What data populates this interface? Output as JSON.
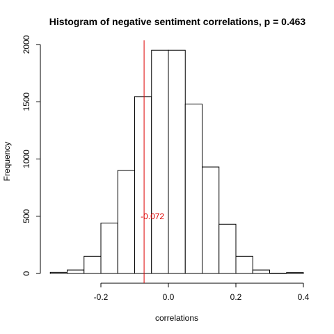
{
  "chart_data": {
    "type": "bar",
    "title": "Histogram of negative sentiment correlations, p = 0.463",
    "xlabel": "correlations",
    "ylabel": "Frequency",
    "xlim": [
      -0.35,
      0.4
    ],
    "ylim": [
      0,
      2000
    ],
    "bin_width": 0.05,
    "bins": [
      {
        "start": -0.35,
        "end": -0.3,
        "count": 10
      },
      {
        "start": -0.3,
        "end": -0.25,
        "count": 30
      },
      {
        "start": -0.25,
        "end": -0.2,
        "count": 150
      },
      {
        "start": -0.2,
        "end": -0.15,
        "count": 440
      },
      {
        "start": -0.15,
        "end": -0.1,
        "count": 900
      },
      {
        "start": -0.1,
        "end": -0.05,
        "count": 1545
      },
      {
        "start": -0.05,
        "end": 0.0,
        "count": 1950
      },
      {
        "start": 0.0,
        "end": 0.05,
        "count": 1950
      },
      {
        "start": 0.05,
        "end": 0.1,
        "count": 1480
      },
      {
        "start": 0.1,
        "end": 0.15,
        "count": 930
      },
      {
        "start": 0.15,
        "end": 0.2,
        "count": 430
      },
      {
        "start": 0.2,
        "end": 0.25,
        "count": 150
      },
      {
        "start": 0.25,
        "end": 0.3,
        "count": 30
      },
      {
        "start": 0.3,
        "end": 0.35,
        "count": 3
      },
      {
        "start": 0.35,
        "end": 0.4,
        "count": 8
      }
    ],
    "x_ticks": [
      -0.2,
      0.0,
      0.2,
      0.4
    ],
    "x_tick_labels": [
      "-0.2",
      "0.0",
      "0.2",
      "0.4"
    ],
    "y_ticks": [
      0,
      500,
      1000,
      1500,
      2000
    ],
    "y_tick_labels": [
      "0",
      "500",
      "1000",
      "1500",
      "2000"
    ],
    "reference_line": {
      "x": -0.072,
      "label": "-0.072",
      "color": "#dd0000",
      "label_y": 500
    },
    "grid": false
  }
}
